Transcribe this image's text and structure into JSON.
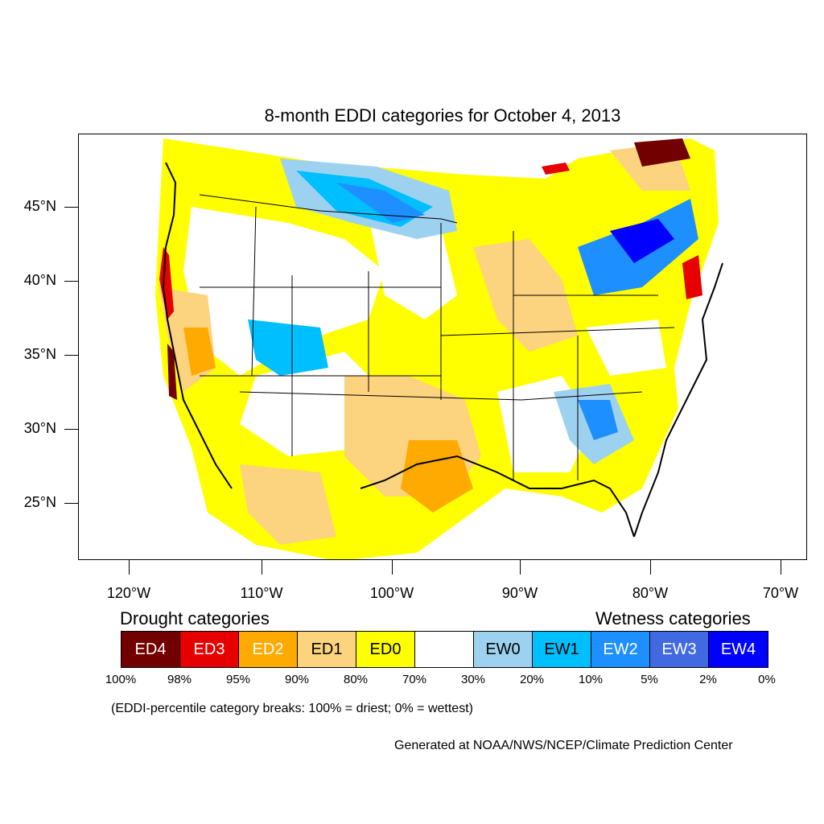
{
  "title": "8-month EDDI categories for October 4, 2013",
  "colors": {
    "ED4": "#730000",
    "ED3": "#e60000",
    "ED2": "#ffaa00",
    "ED1": "#fcd37f",
    "ED0": "#ffff00",
    "neutral": "#ffffff",
    "EW0": "#9dd1f0",
    "EW1": "#00bfff",
    "EW2": "#1e8fff",
    "EW3": "#4169e1",
    "EW4": "#0000ff"
  },
  "map": {
    "lat_labels": [
      "45°N",
      "40°N",
      "35°N",
      "30°N",
      "25°N"
    ],
    "lon_labels": [
      "120°W",
      "110°W",
      "100°W",
      "90°W",
      "80°W",
      "70°W"
    ]
  },
  "legend": {
    "drought_heading": "Drought categories",
    "wetness_heading": "Wetness categories",
    "categories": [
      {
        "label": "ED4",
        "color": "#730000",
        "text_color": "#ffffff"
      },
      {
        "label": "ED3",
        "color": "#e60000",
        "text_color": "#ffffff"
      },
      {
        "label": "ED2",
        "color": "#ffaa00",
        "text_color": "#ffffff"
      },
      {
        "label": "ED1",
        "color": "#fcd37f",
        "text_color": "#000000"
      },
      {
        "label": "ED0",
        "color": "#ffff00",
        "text_color": "#000000"
      },
      {
        "label": "",
        "color": "#ffffff",
        "text_color": "#000000"
      },
      {
        "label": "EW0",
        "color": "#9dd1f0",
        "text_color": "#000000"
      },
      {
        "label": "EW1",
        "color": "#00bfff",
        "text_color": "#000000"
      },
      {
        "label": "EW2",
        "color": "#1e8fff",
        "text_color": "#ffffff"
      },
      {
        "label": "EW3",
        "color": "#4169e1",
        "text_color": "#ffffff"
      },
      {
        "label": "EW4",
        "color": "#0000ff",
        "text_color": "#ffffff"
      }
    ],
    "breaks": [
      "100%",
      "98%",
      "95%",
      "90%",
      "80%",
      "70%",
      "30%",
      "20%",
      "10%",
      "5%",
      "2%",
      "0%"
    ]
  },
  "note": "(EDDI-percentile category breaks: 100% = driest; 0% = wettest)",
  "credit": "Generated at NOAA/NWS/NCEP/Climate Prediction Center"
}
